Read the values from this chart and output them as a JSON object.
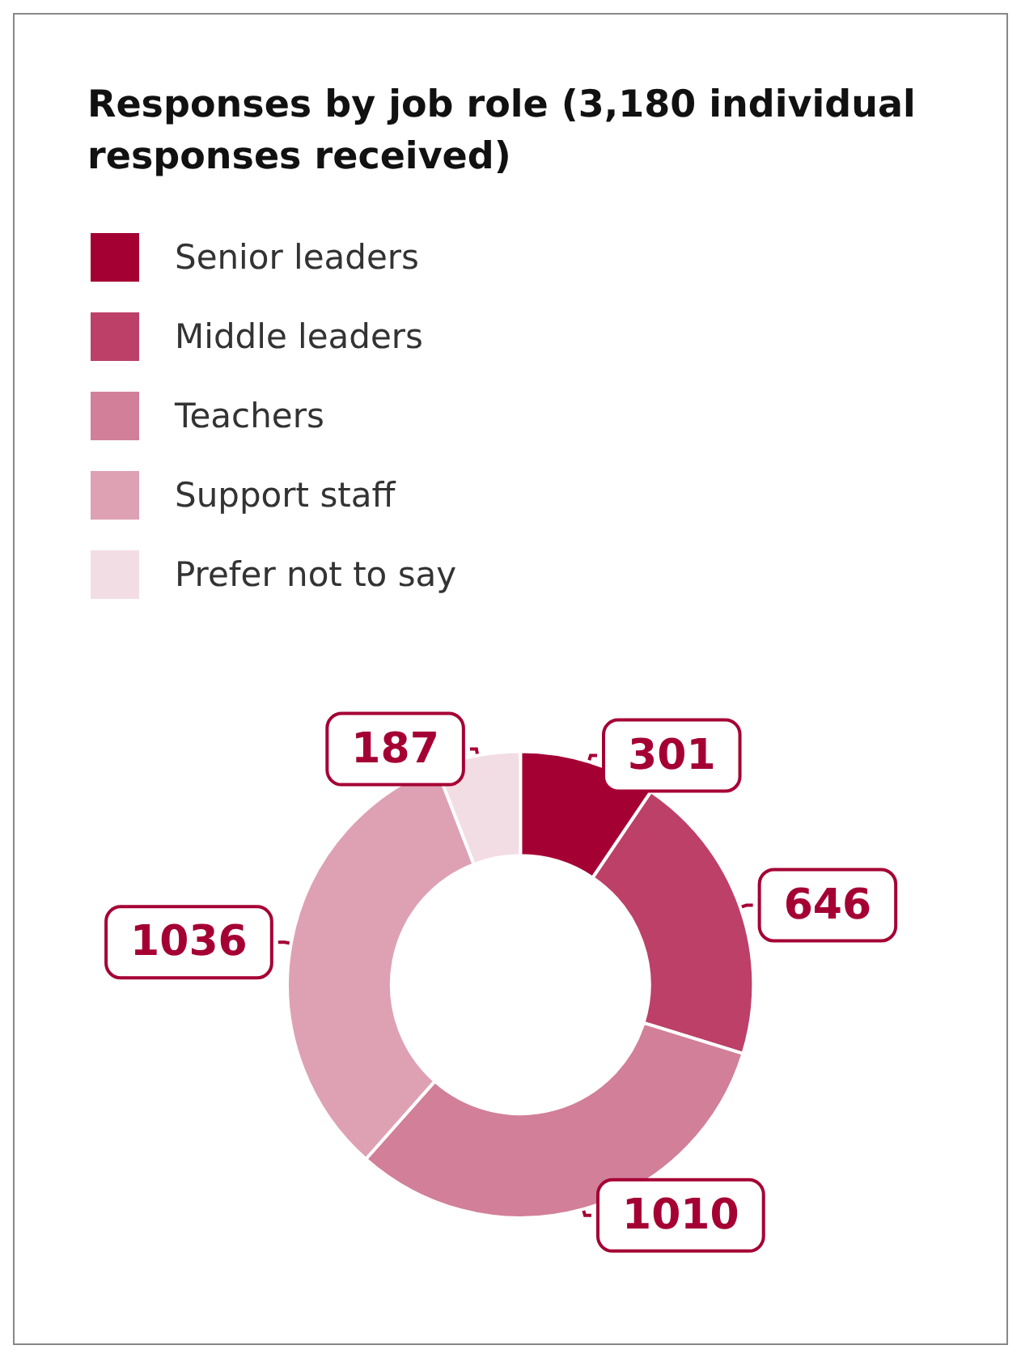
{
  "chart_data": {
    "type": "donut",
    "title": "Responses by job role (3,180 individual responses received)",
    "categories": [
      "Senior leaders",
      "Middle leaders",
      "Teachers",
      "Support staff",
      "Prefer not to say"
    ],
    "values": [
      301,
      646,
      1010,
      1036,
      187
    ],
    "colors": [
      "#a50034",
      "#bc4068",
      "#d27f99",
      "#dea1b4",
      "#f3dde4"
    ],
    "data_labels": true,
    "legend": "top left"
  }
}
